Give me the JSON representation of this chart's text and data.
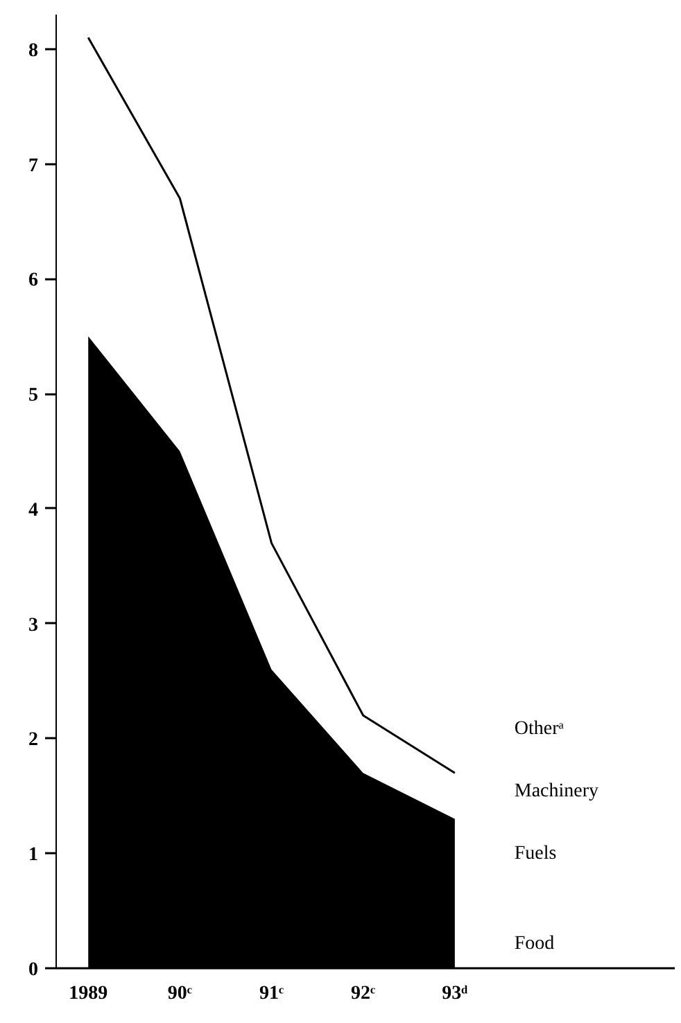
{
  "chart_data": {
    "type": "area",
    "categories": [
      "1989",
      "90ᶜ",
      "91ᶜ",
      "92ᶜ",
      "93ᵈ"
    ],
    "series": [
      {
        "type": "area",
        "color": "#000000",
        "values": [
          5.5,
          4.5,
          2.6,
          1.7,
          1.3
        ]
      },
      {
        "type": "line",
        "color": "#000000",
        "values": [
          8.1,
          6.7,
          3.7,
          2.2,
          1.7
        ]
      }
    ],
    "annotations": [
      "Otherᵃ",
      "Machinery",
      "Fuels",
      "Food"
    ],
    "ylim": [
      0,
      8.3
    ],
    "yticks": [
      0,
      1,
      2,
      3,
      4,
      5,
      6,
      7,
      8
    ],
    "grid": false
  }
}
